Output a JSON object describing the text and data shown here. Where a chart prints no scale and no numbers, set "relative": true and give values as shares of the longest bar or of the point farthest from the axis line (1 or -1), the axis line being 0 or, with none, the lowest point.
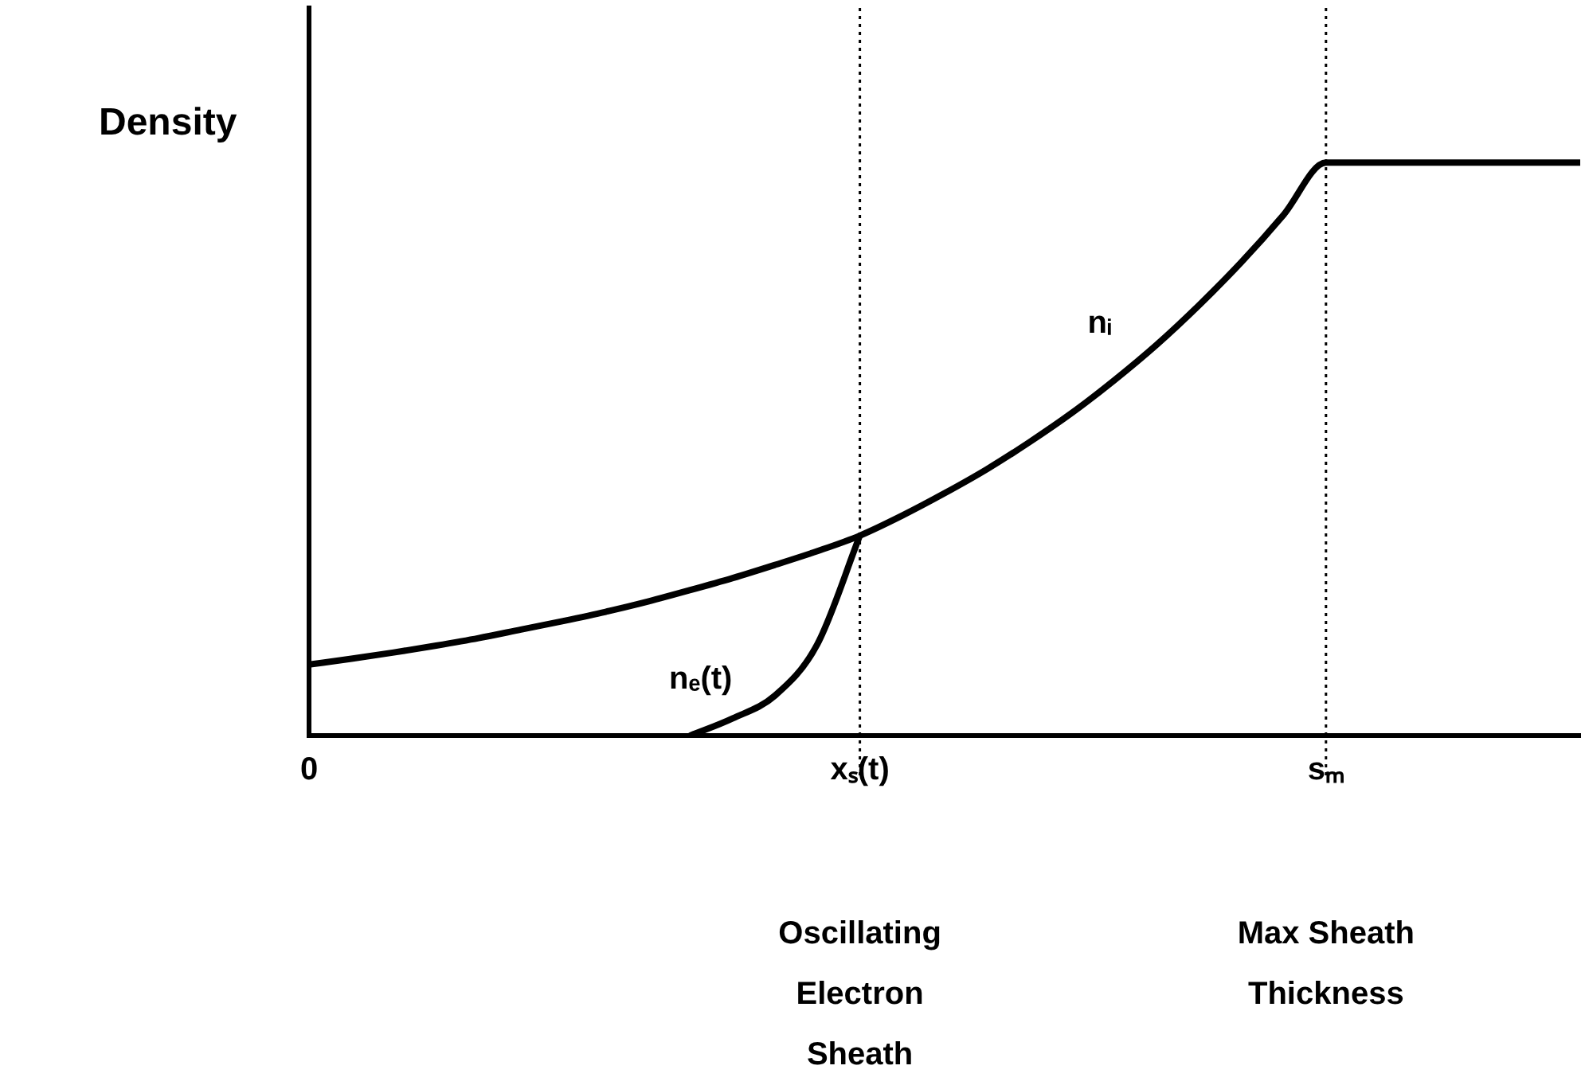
{
  "chart_data": {
    "type": "line",
    "ylabel": "Density",
    "relative": true,
    "grid": false,
    "legend": false,
    "tick_labels": "x",
    "marker": "none",
    "line_style": "solid",
    "categories": [
      "0",
      null,
      null,
      null,
      null,
      null,
      null,
      null,
      null,
      null,
      null,
      null,
      null,
      "xₛ(t)",
      null,
      null,
      null,
      null,
      null,
      null,
      null,
      null,
      null,
      null,
      "sₘ",
      null,
      null,
      null,
      null,
      null,
      null
    ],
    "ref_lines": [
      {
        "axis": "x",
        "value": "xₛ(t)",
        "line_style": "dotted",
        "color": "#000000"
      },
      {
        "axis": "x",
        "value": "sₘ",
        "line_style": "dotted",
        "color": "#000000"
      }
    ],
    "annotations": [
      "Oscillating Electron Sheath",
      "Max Sheath Thickness"
    ],
    "series": [
      {
        "name": "nᵢ",
        "color": "#000000",
        "values": [
          0.124,
          0.134,
          0.145,
          0.157,
          0.17,
          0.185,
          0.2,
          0.216,
          0.234,
          0.254,
          0.275,
          0.298,
          0.322,
          0.349,
          0.384,
          0.423,
          0.465,
          0.512,
          0.563,
          0.62,
          0.682,
          0.751,
          0.826,
          0.909,
          1,
          1,
          1,
          1,
          1,
          1,
          1
        ]
      },
      {
        "name": "nₑ(t)",
        "color": "#000000",
        "values": [
          null,
          null,
          null,
          null,
          null,
          null,
          null,
          null,
          null,
          0,
          0.03,
          0.07,
          0.16,
          0.349,
          null,
          null,
          null,
          null,
          null,
          null,
          null,
          null,
          null,
          null,
          null,
          null,
          null,
          null,
          null,
          null,
          null
        ]
      }
    ]
  }
}
